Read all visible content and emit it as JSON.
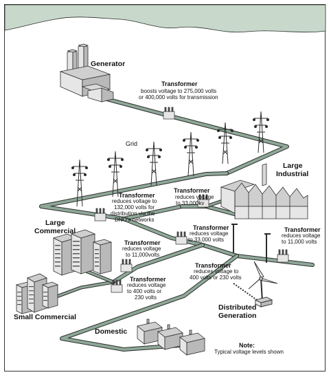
{
  "labels": {
    "generator": "Generator",
    "transformer_boost_title": "Transformer",
    "transformer_boost_desc_1": "boosts voltage to 275,000 volts",
    "transformer_boost_desc_2": "or 400,000 volts for transmission",
    "grid": "Grid",
    "large_industrial_1": "Large",
    "large_industrial_2": "Industrial",
    "t_33000kv_title": "Transformer",
    "t_33000kv_desc_1": "reduces voltage",
    "t_33000kv_desc_2": "to 33,000kv",
    "t_132000_title": "Transformer",
    "t_132000_desc_1": "reduces voltage to",
    "t_132000_desc_2": "132,000 volts for",
    "t_132000_desc_3": "distribution via the",
    "t_132000_desc_4": "DNO's networks",
    "large_commercial_1": "Large",
    "large_commercial_2": "Commercial",
    "t_33000_title": "Transformer",
    "t_33000_desc_1": "reduces voltage",
    "t_33000_desc_2": "to 33,000 volts",
    "t_11000r_title": "Transformer",
    "t_11000r_desc_1": "reduces voltage",
    "t_11000r_desc_2": "to 11,000 volts",
    "t_11000l_title": "Transformer",
    "t_11000l_desc_1": "reduces voltage",
    "t_11000l_desc_2": "to 11,000volts",
    "t_400_title": "Transformer",
    "t_400_desc_1": "reduces voltage to",
    "t_400_desc_2": "400 volts or 230 volts",
    "t_230_title": "Transformer",
    "t_230_desc_1": "reduces voltage",
    "t_230_desc_2": "to 400 volts or",
    "t_230_desc_3": "230 volts",
    "small_commercial": "Small Commercial",
    "distributed_1": "Distributed",
    "distributed_2": "Generation",
    "domestic": "Domestic",
    "note_title": "Note:",
    "note_text": "Typical voltage levels shown"
  },
  "colors": {
    "line": "#2b2b2b",
    "cable": "#8fa898",
    "cable_dark": "#5d7a66",
    "hill": "#c8d9cc",
    "building_light": "#e6e6e6",
    "building_mid": "#b9b9b9",
    "building_dark": "#8a8a8a"
  }
}
